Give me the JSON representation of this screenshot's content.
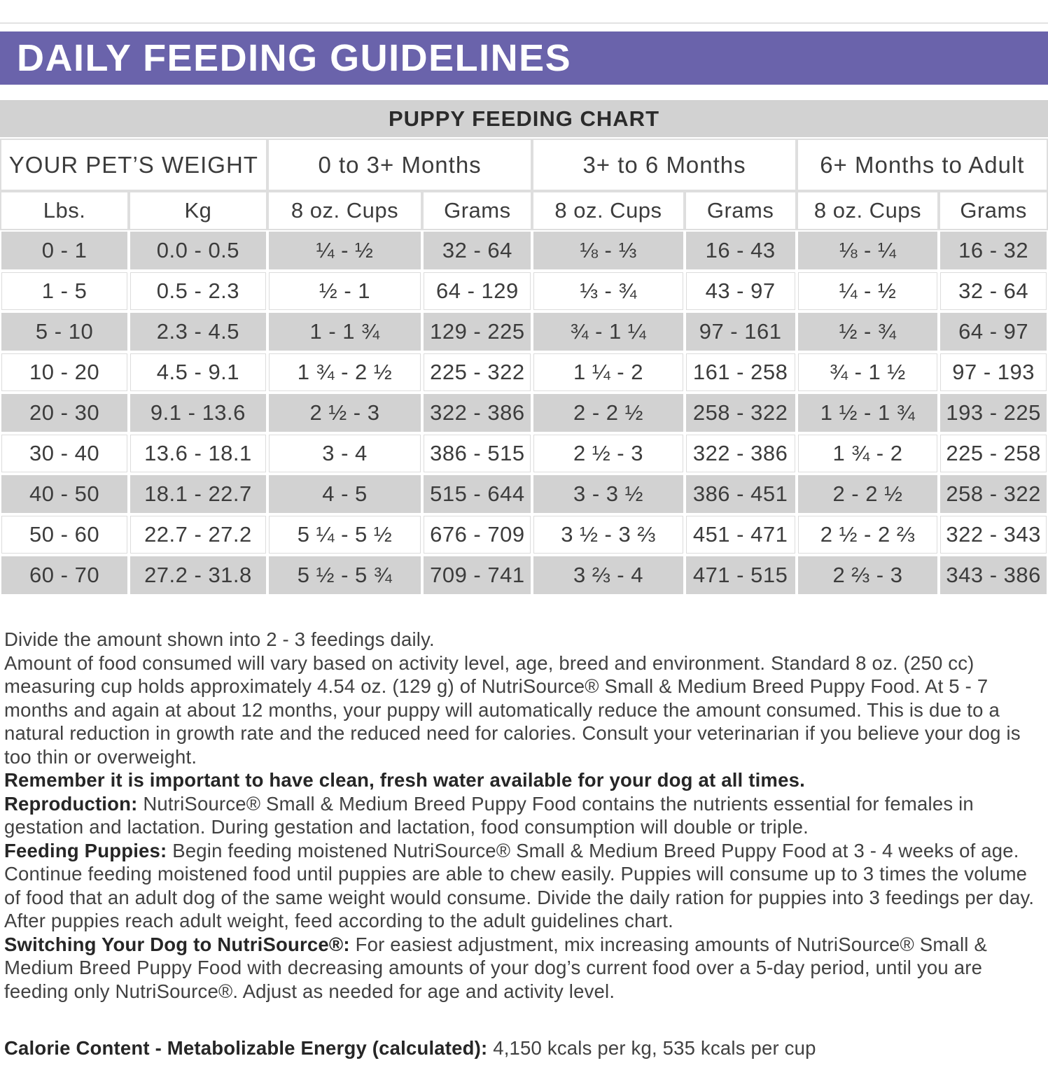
{
  "colors": {
    "banner_purple": "#6a63ab",
    "stripe_gray": "#d2d2d2",
    "text_dark": "#3c3c3c"
  },
  "banner": {
    "title": "DAILY FEEDING GUIDELINES"
  },
  "chart": {
    "title": "PUPPY FEEDING CHART",
    "group_headers": [
      {
        "label": "YOUR PET’S WEIGHT",
        "span": 2
      },
      {
        "label": "0 to 3+ Months",
        "span": 2
      },
      {
        "label": "3+ to 6 Months",
        "span": 2
      },
      {
        "label": "6+ Months to Adult",
        "span": 2
      }
    ],
    "sub_headers": [
      "Lbs.",
      "Kg",
      "8 oz. Cups",
      "Grams",
      "8 oz. Cups",
      "Grams",
      "8 oz. Cups",
      "Grams"
    ],
    "rows": [
      [
        "0 - 1",
        "0.0 - 0.5",
        "¼ - ½",
        "32 - 64",
        "⅛ - ⅓",
        "16 - 43",
        "⅛ - ¼",
        "16 - 32"
      ],
      [
        "1 - 5",
        "0.5 - 2.3",
        "½ - 1",
        "64 - 129",
        "⅓ - ¾",
        "43 - 97",
        "¼ - ½",
        "32 - 64"
      ],
      [
        "5 - 10",
        "2.3 - 4.5",
        "1 - 1 ¾",
        "129 - 225",
        "¾ - 1 ¼",
        "97 - 161",
        "½ - ¾",
        "64 - 97"
      ],
      [
        "10 - 20",
        "4.5 - 9.1",
        "1 ¾ - 2 ½",
        "225 - 322",
        "1 ¼ - 2",
        "161 - 258",
        "¾ - 1 ½",
        "97 - 193"
      ],
      [
        "20 - 30",
        "9.1 - 13.6",
        "2 ½ - 3",
        "322 - 386",
        "2 - 2 ½",
        "258 - 322",
        "1 ½ - 1 ¾",
        "193 - 225"
      ],
      [
        "30 - 40",
        "13.6 - 18.1",
        "3 - 4",
        "386 - 515",
        "2 ½ - 3",
        "322 - 386",
        "1 ¾ - 2",
        "225 - 258"
      ],
      [
        "40 - 50",
        "18.1 - 22.7",
        "4 - 5",
        "515 - 644",
        "3 - 3 ½",
        "386 - 451",
        "2 - 2 ½",
        "258 - 322"
      ],
      [
        "50 - 60",
        "22.7 - 27.2",
        "5 ¼ - 5 ½",
        "676 - 709",
        "3 ½ - 3 ⅔",
        "451 - 471",
        "2 ½ - 2 ⅔",
        "322 - 343"
      ],
      [
        "60 - 70",
        "27.2 - 31.8",
        "5 ½ - 5 ¾",
        "709 - 741",
        "3 ⅔ - 4",
        "471 - 515",
        "2 ⅔ - 3",
        "343 - 386"
      ]
    ],
    "stripe_row_indexes": [
      0,
      2,
      4,
      6,
      8
    ]
  },
  "notes": {
    "paragraphs": [
      [
        {
          "t": "Divide the amount shown into 2 - 3 feedings daily."
        }
      ],
      [
        {
          "t": "Amount of food consumed will vary based on activity level, age, breed and environment. Standard 8 oz. (250 cc) measuring cup holds approximately 4.54 oz. (129 g) of NutriSource® Small & Medium Breed Puppy Food. At 5 - 7 months and again at about 12 months, your puppy will automatically reduce the amount consumed. This is due to a natural reduction in growth rate and the reduced need for calories. Consult your veterinarian if you believe your dog is too thin or overweight."
        }
      ],
      [
        {
          "b": "Remember it is important to have clean, fresh water available for your dog at all times."
        }
      ],
      [
        {
          "b": "Reproduction:"
        },
        {
          "t": " NutriSource® Small & Medium Breed Puppy Food contains the nutrients essential for females in gestation and lactation. During gestation and lactation, food consumption will double or triple."
        }
      ],
      [
        {
          "b": "Feeding Puppies:"
        },
        {
          "t": " Begin feeding moistened NutriSource® Small & Medium Breed Puppy Food at 3 - 4 weeks of age. Continue feeding moistened food until puppies are able to chew easily. Puppies will consume up to 3 times the volume of food that an adult dog of the same weight would consume. Divide the daily ration for puppies into 3 feedings per day. After puppies reach adult weight, feed according to the adult guidelines chart."
        }
      ],
      [
        {
          "b": "Switching Your Dog to NutriSource®:"
        },
        {
          "t": " For easiest adjustment, mix increasing amounts of NutriSource® Small & Medium Breed Puppy Food with decreasing amounts of your dog’s current food over a 5-day period, until you are feeding only NutriSource®. Adjust as needed for age and activity level."
        }
      ]
    ]
  },
  "footer": {
    "calorie_line": [
      {
        "b": "Calorie Content - Metabolizable Energy (calculated):"
      },
      {
        "t": " 4,150 kcals per kg, 535 kcals per cup"
      }
    ]
  }
}
